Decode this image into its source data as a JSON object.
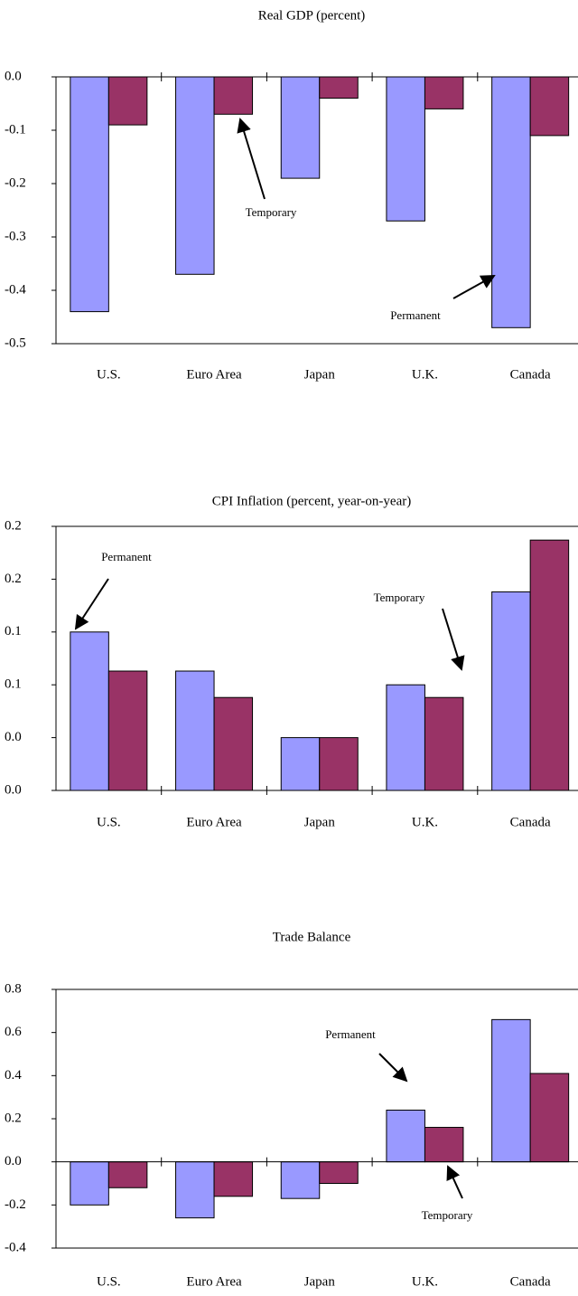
{
  "chart_data": [
    {
      "type": "bar",
      "title": "Real GDP (percent)",
      "categories": [
        "U.S.",
        "Euro Area",
        "Japan",
        "U.K.",
        "Canada"
      ],
      "series": [
        {
          "name": "Permanent",
          "color": "#9999ff",
          "values": [
            -0.44,
            -0.37,
            -0.19,
            -0.27,
            -0.47
          ]
        },
        {
          "name": "Temporary",
          "color": "#993366",
          "values": [
            -0.09,
            -0.07,
            -0.04,
            -0.06,
            -0.11
          ]
        }
      ],
      "ylim": [
        -0.5,
        0
      ],
      "yticks": [
        {
          "value": 0,
          "label": "0.0"
        },
        -0.1,
        -0.2,
        -0.3,
        -0.4,
        -0.5
      ]
    },
    {
      "type": "bar",
      "title": "CPI Inflation (percent, year-on-year)",
      "categories": [
        "U.S.",
        "Euro Area",
        "Japan",
        "U.K.",
        "Canada"
      ],
      "series": [
        {
          "name": "Permanent",
          "color": "#9999ff",
          "values": [
            0.15,
            0.113,
            0.05,
            0.1,
            0.188
          ]
        },
        {
          "name": "Temporary",
          "color": "#993366",
          "values": [
            0.113,
            0.088,
            0.05,
            0.088,
            0.237
          ]
        }
      ],
      "ylim": [
        0,
        0.25
      ],
      "yticks": [
        {
          "value": 0,
          "label": "0.0"
        },
        {
          "value": 0.05,
          "label": "0.0"
        },
        0.1,
        {
          "value": 0.15,
          "label": "0.1"
        },
        0.2,
        {
          "value": 0.25,
          "label": "0.2"
        }
      ]
    },
    {
      "type": "bar",
      "title": "Trade Balance",
      "categories": [
        "U.S.",
        "Euro Area",
        "Japan",
        "U.K.",
        "Canada"
      ],
      "series": [
        {
          "name": "Permanent",
          "color": "#9999ff",
          "values": [
            -0.2,
            -0.26,
            -0.17,
            0.24,
            0.66
          ]
        },
        {
          "name": "Temporary",
          "color": "#993366",
          "values": [
            -0.12,
            -0.16,
            -0.1,
            0.16,
            0.41
          ]
        }
      ],
      "ylim": [
        -0.4,
        0.8
      ],
      "yticks": [
        -0.4,
        -0.2,
        {
          "value": 0,
          "label": "0.0"
        },
        0.2,
        0.4,
        0.6,
        0.8
      ]
    }
  ]
}
